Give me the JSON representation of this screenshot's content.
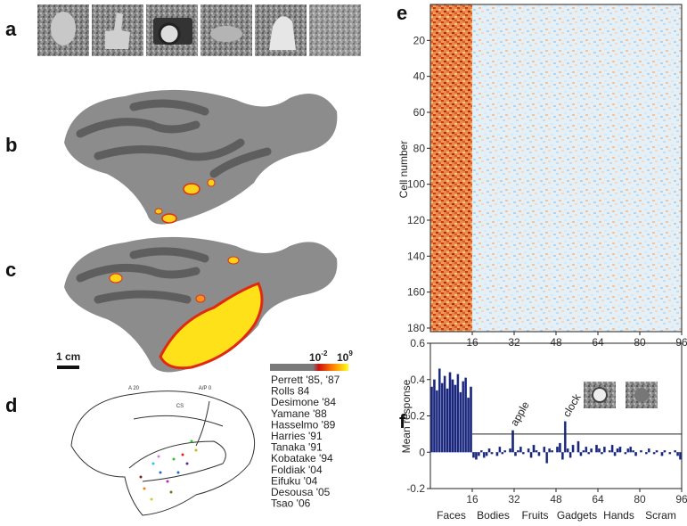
{
  "panel_labels": [
    "a",
    "b",
    "c",
    "d",
    "e",
    "f"
  ],
  "scale_bar": "1 cm",
  "colorbar": {
    "low": {
      "base": "10",
      "exponent": "-2"
    },
    "high": {
      "base": "10",
      "exponent": "9"
    }
  },
  "brain_labels": [
    "A 20",
    "A/P 0",
    "CS"
  ],
  "legend": [
    {
      "label": "Perrett '85, '87",
      "color": "#35c5e8"
    },
    {
      "label": "Rolls 84",
      "color": "#e8231f"
    },
    {
      "label": "Desimone '84",
      "color": "#5a2ca0"
    },
    {
      "label": "Yamane '88",
      "color": "#d4b020"
    },
    {
      "label": "Hasselmo '89",
      "color": "#c81ec8"
    },
    {
      "label": "Harries '91",
      "color": "#22c820"
    },
    {
      "label": "Tanaka '91",
      "color": "#c3d22e"
    },
    {
      "label": "Kobatake '94",
      "color": "#7a1f1f"
    },
    {
      "label": "Foldiak '04",
      "color": "#6a7a1a"
    },
    {
      "label": "Eifuku '04",
      "color": "#f0801e"
    },
    {
      "label": "Desousa '05",
      "color": "#1e6ec8"
    },
    {
      "label": "Tsao '06",
      "color": "#e87ad8"
    }
  ],
  "heatmap": {
    "ylabel": "Cell number",
    "ylim": [
      0,
      182
    ],
    "yticks": [
      20,
      40,
      60,
      80,
      100,
      120,
      140,
      160,
      180
    ],
    "xlim": [
      0,
      96
    ],
    "xticks": [
      16,
      32,
      48,
      64,
      80,
      96
    ]
  },
  "chart_data": {
    "type": "bar",
    "ylabel": "Mean response",
    "ylim": [
      -0.2,
      0.6
    ],
    "yticks": [
      0.6,
      0.4,
      0.2,
      0,
      -0.2
    ],
    "xlim": [
      0,
      96
    ],
    "xticks": [
      16,
      32,
      48,
      64,
      80,
      96
    ],
    "groups": [
      "Faces",
      "Bodies",
      "Fruits",
      "Gadgets",
      "Hands",
      "Scram"
    ],
    "annotations": [
      {
        "text": "apple",
        "x": 32
      },
      {
        "text": "clock",
        "x": 52
      }
    ],
    "reference_line": 0.1,
    "color": "#1c2670",
    "values": [
      0.36,
      0.4,
      0.34,
      0.46,
      0.38,
      0.42,
      0.35,
      0.44,
      0.4,
      0.37,
      0.43,
      0.33,
      0.39,
      0.41,
      0.3,
      0.36,
      -0.03,
      -0.04,
      -0.02,
      0.01,
      -0.03,
      -0.02,
      0.02,
      -0.01,
      0.0,
      -0.02,
      0.03,
      -0.01,
      0.01,
      0.0,
      0.02,
      0.12,
      -0.02,
      0.01,
      0.03,
      -0.01,
      0.0,
      0.02,
      -0.03,
      0.04,
      0.01,
      -0.02,
      0.0,
      0.03,
      -0.06,
      0.02,
      0.01,
      0.0,
      0.03,
      0.05,
      -0.04,
      0.17,
      0.02,
      -0.03,
      0.04,
      0.0,
      0.06,
      -0.02,
      0.01,
      0.03,
      -0.01,
      0.02,
      0.0,
      0.04,
      0.02,
      -0.01,
      0.03,
      0.0,
      0.01,
      0.04,
      -0.02,
      0.02,
      0.03,
      0.0,
      -0.01,
      0.02,
      0.03,
      0.01,
      -0.02,
      0.0,
      0.01,
      0.0,
      -0.01,
      0.02,
      0.0,
      -0.01,
      0.01,
      0.0,
      -0.02,
      0.01,
      0.0,
      -0.01,
      0.0,
      0.01,
      -0.02,
      -0.04
    ]
  }
}
